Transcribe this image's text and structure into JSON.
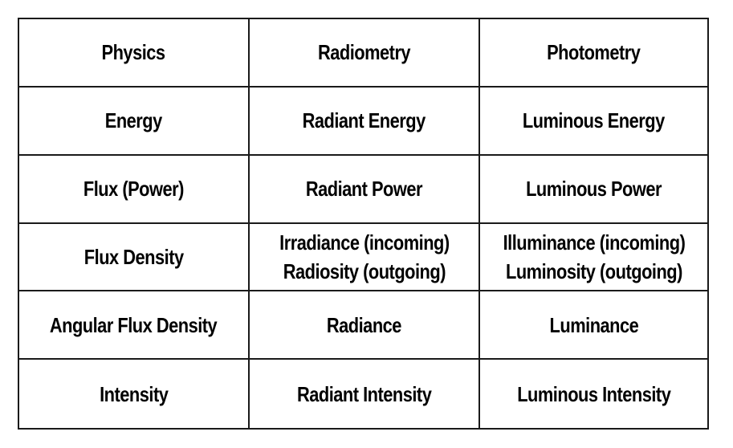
{
  "table": {
    "headers": [
      "Physics",
      "Radiometry",
      "Photometry"
    ],
    "rows": [
      {
        "physics": "Energy",
        "radiometry": [
          "Radiant Energy"
        ],
        "photometry": [
          "Luminous Energy"
        ]
      },
      {
        "physics": "Flux (Power)",
        "radiometry": [
          "Radiant Power"
        ],
        "photometry": [
          "Luminous Power"
        ]
      },
      {
        "physics": "Flux Density",
        "radiometry": [
          "Irradiance (incoming)",
          "Radiosity (outgoing)"
        ],
        "photometry": [
          "Illuminance (incoming)",
          "Luminosity (outgoing)"
        ]
      },
      {
        "physics": "Angular Flux Density",
        "radiometry": [
          "Radiance"
        ],
        "photometry": [
          "Luminance"
        ]
      },
      {
        "physics": "Intensity",
        "radiometry": [
          "Radiant Intensity"
        ],
        "photometry": [
          "Luminous Intensity"
        ]
      }
    ]
  }
}
